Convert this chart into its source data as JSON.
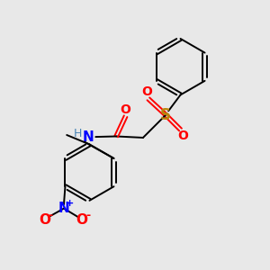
{
  "background_color": "#e8e8e8",
  "bond_color": "#000000",
  "S_color": "#b8860b",
  "O_color": "#ff0000",
  "N_color": "#0000ff",
  "NH_color": "#4682b4",
  "H_color": "#4682b4",
  "figsize": [
    3.0,
    3.0
  ],
  "dpi": 100,
  "xlim": [
    0,
    10
  ],
  "ylim": [
    0,
    10
  ]
}
